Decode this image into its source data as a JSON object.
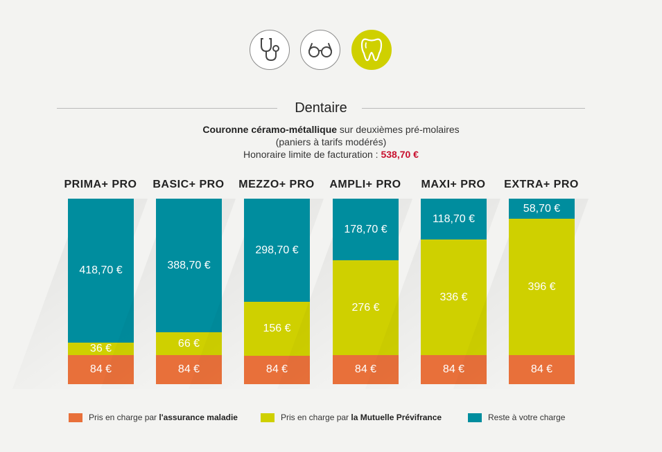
{
  "icons": [
    {
      "name": "stethoscope-icon",
      "active": false
    },
    {
      "name": "glasses-icon",
      "active": false
    },
    {
      "name": "tooth-icon",
      "active": true
    }
  ],
  "section": {
    "title": "Dentaire",
    "desc_bold": "Couronne céramo-métallique",
    "desc_rest": " sur deuxièmes pré-molaires",
    "desc_line2": "(paniers à tarifs modérés)",
    "desc_line3_label": "Honoraire limite de facturation : ",
    "desc_line3_price": "538,70 €"
  },
  "colors": {
    "assurance": "#e8703a",
    "mutuelle": "#cfd000",
    "reste": "#008d9e",
    "accent_price": "#c8102e"
  },
  "legend": [
    {
      "key": "assurance",
      "prefix": "Pris en charge par ",
      "bold": "l'assurance maladie"
    },
    {
      "key": "mutuelle",
      "prefix": "Pris en charge par ",
      "bold": "la Mutuelle Prévifrance"
    },
    {
      "key": "reste",
      "prefix": "Reste à votre charge",
      "bold": ""
    }
  ],
  "chart_data": {
    "type": "bar",
    "stacked": true,
    "total": 538.7,
    "categories": [
      "PRIMA+ PRO",
      "BASIC+ PRO",
      "MEZZO+ PRO",
      "AMPLI+ PRO",
      "MAXI+ PRO",
      "EXTRA+ PRO"
    ],
    "series": [
      {
        "name": "Pris en charge par l'assurance maladie",
        "key": "assurance",
        "values": [
          84,
          84,
          84,
          84,
          84,
          84
        ],
        "labels": [
          "84 €",
          "84 €",
          "84 €",
          "84 €",
          "84 €",
          "84 €"
        ]
      },
      {
        "name": "Pris en charge par la Mutuelle Prévifrance",
        "key": "mutuelle",
        "values": [
          36,
          66,
          156,
          276,
          336,
          396
        ],
        "labels": [
          "36 €",
          "66 €",
          "156 €",
          "276 €",
          "336 €",
          "396 €"
        ]
      },
      {
        "name": "Reste à votre charge",
        "key": "reste",
        "values": [
          418.7,
          388.7,
          298.7,
          178.7,
          118.7,
          58.7
        ],
        "labels": [
          "418,70 €",
          "388,70 €",
          "298,70 €",
          "178,70 €",
          "118,70 €",
          "58,70 €"
        ]
      }
    ]
  }
}
